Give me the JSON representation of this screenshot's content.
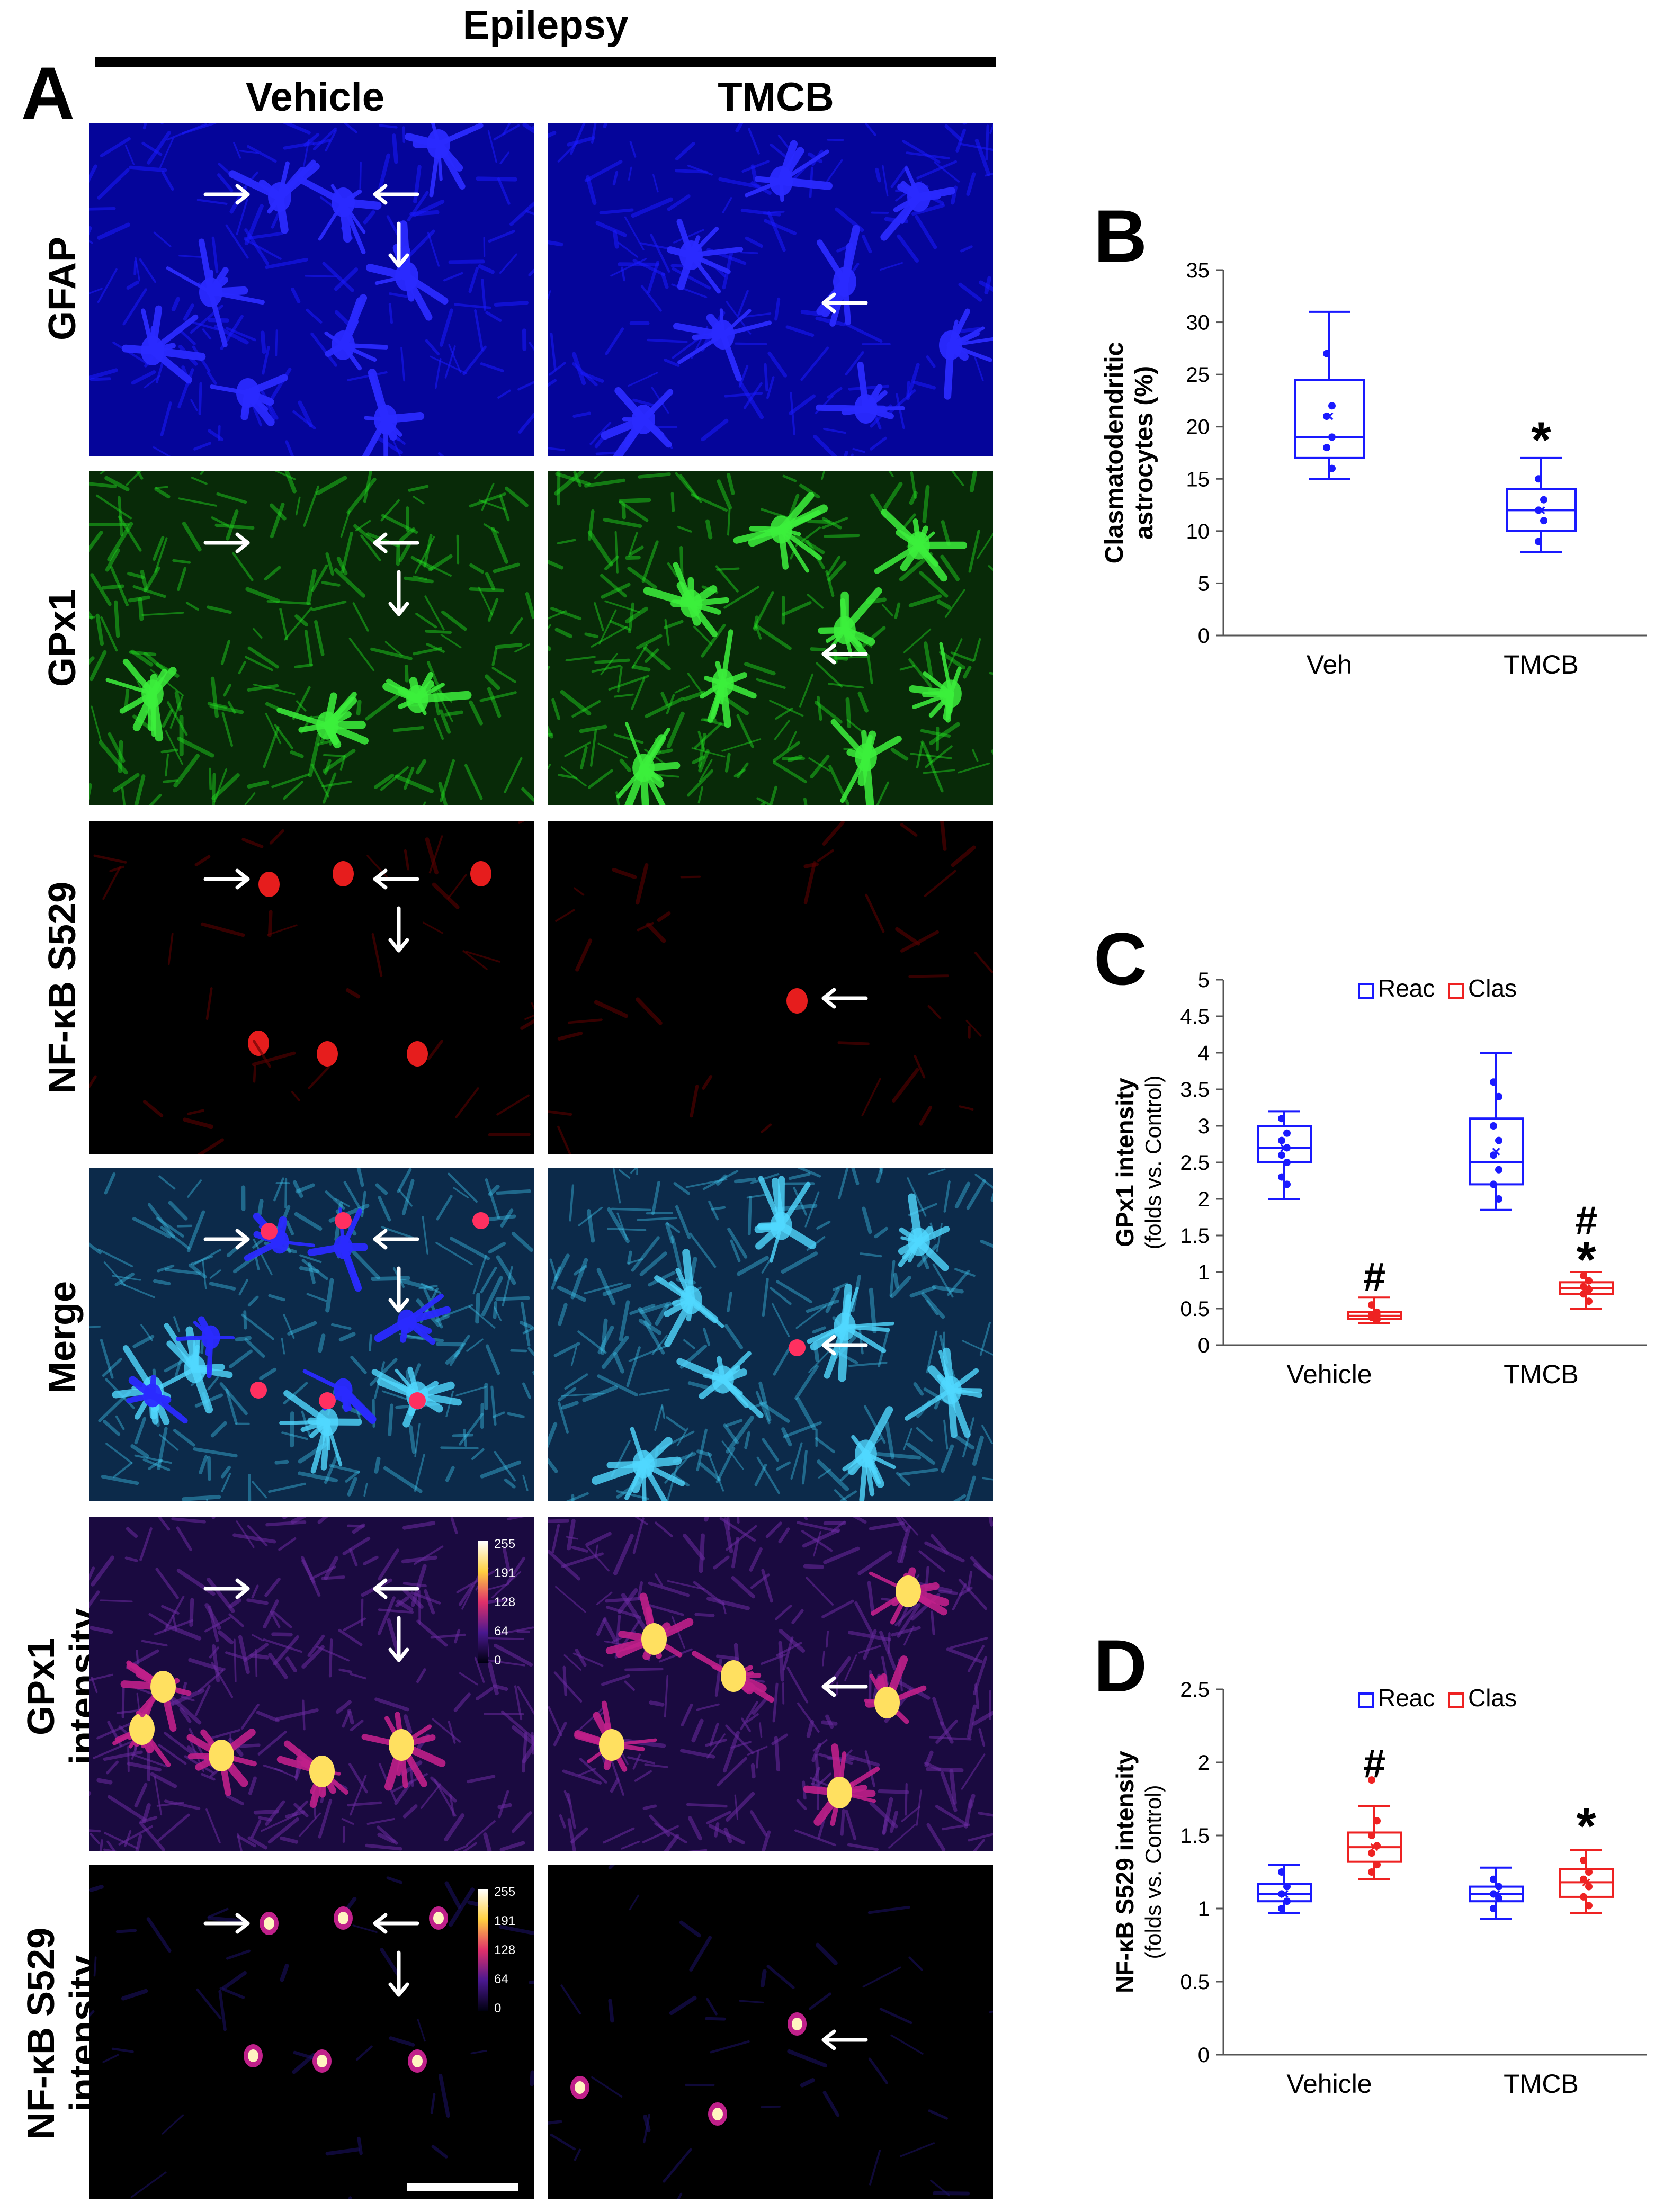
{
  "figure": {
    "panel_a": {
      "letter": "A",
      "group_title": "Epilepsy",
      "columns": [
        "Vehicle",
        "TMCB"
      ],
      "rows": [
        {
          "label": "GFAP",
          "stain": "blue"
        },
        {
          "label": "GPx1",
          "stain": "green"
        },
        {
          "label": "NF-κB S529",
          "stain": "red"
        },
        {
          "label": "Merge",
          "stain": "merge"
        },
        {
          "label": "GPx1\nintensity",
          "stain": "fire"
        },
        {
          "label": "NF-κB S529\nintensity",
          "stain": "fire-sparse"
        }
      ],
      "calibration_ticks": [
        "255",
        "191",
        "128",
        "64",
        "0"
      ],
      "colors": {
        "blue": "#1a1aff",
        "green": "#22dd22",
        "red": "#ff2020",
        "cyan": "#40c8f0",
        "fire_hot": "#ffe060",
        "fire_mid": "#c0208a",
        "fire_low": "#3a1480"
      }
    },
    "panel_b": {
      "letter": "B"
    },
    "panel_c": {
      "letter": "C"
    },
    "panel_d": {
      "letter": "D"
    }
  },
  "chart_data": [
    {
      "type": "box",
      "panel": "B",
      "ylabel_lines": [
        "Clasmatodendritic",
        "astrocytes (%)"
      ],
      "ylim": [
        0,
        35
      ],
      "yticks": [
        0,
        5,
        10,
        15,
        20,
        25,
        30,
        35
      ],
      "categories": [
        "Veh",
        "TMCB"
      ],
      "series": [
        {
          "color": "#1a1aff",
          "boxes": [
            {
              "min": 15,
              "q1": 17,
              "median": 19,
              "q3": 24.5,
              "max": 31,
              "mean": 21,
              "points": [
                27,
                22,
                21,
                19,
                18,
                16
              ]
            },
            {
              "min": 8,
              "q1": 10,
              "median": 12,
              "q3": 14,
              "max": 17,
              "mean": 12,
              "points": [
                15,
                13,
                12,
                11,
                9
              ]
            }
          ]
        }
      ],
      "annotations": [
        {
          "category": "TMCB",
          "text": "*",
          "y": 19.5
        }
      ]
    },
    {
      "type": "box",
      "panel": "C",
      "ylabel": "GPx1 intensity",
      "ylabel_sub": "(folds vs. Control)",
      "ylim": [
        0,
        5
      ],
      "yticks": [
        "0",
        "0.5",
        "1",
        "1.5",
        "2",
        "2.5",
        "3",
        "3.5",
        "4",
        "4.5",
        "5"
      ],
      "categories": [
        "Vehicle",
        "TMCB"
      ],
      "legend": [
        "Reac",
        "Clas"
      ],
      "series": [
        {
          "name": "Reac",
          "color": "#1a1aff",
          "boxes": [
            {
              "min": 2.0,
              "q1": 2.5,
              "median": 2.7,
              "q3": 3.0,
              "max": 3.2,
              "mean": 2.7,
              "points": [
                3.1,
                2.9,
                2.8,
                2.7,
                2.6,
                2.5,
                2.3,
                2.2
              ]
            },
            {
              "min": 1.85,
              "q1": 2.2,
              "median": 2.5,
              "q3": 3.1,
              "max": 4.0,
              "mean": 2.65,
              "points": [
                3.6,
                3.4,
                3.0,
                2.8,
                2.6,
                2.4,
                2.2,
                2.0
              ]
            }
          ]
        },
        {
          "name": "Clas",
          "color": "#ee2222",
          "boxes": [
            {
              "min": 0.3,
              "q1": 0.36,
              "median": 0.4,
              "q3": 0.45,
              "max": 0.65,
              "mean": 0.41,
              "points": [
                0.55,
                0.45,
                0.42,
                0.4,
                0.38,
                0.35
              ]
            },
            {
              "min": 0.5,
              "q1": 0.7,
              "median": 0.78,
              "q3": 0.86,
              "max": 1.0,
              "mean": 0.78,
              "points": [
                0.95,
                0.88,
                0.8,
                0.76,
                0.7,
                0.6
              ]
            }
          ]
        }
      ],
      "annotations": [
        {
          "category": "Vehicle",
          "series": "Clas",
          "text": "#",
          "y": 0.95
        },
        {
          "category": "TMCB",
          "series": "Clas",
          "text": "#",
          "y": 1.72
        },
        {
          "category": "TMCB",
          "series": "Clas",
          "text": "*",
          "y": 1.28
        }
      ]
    },
    {
      "type": "box",
      "panel": "D",
      "ylabel": "NF-κB S529 intensity",
      "ylabel_sub": "(folds vs. Control)",
      "ylim": [
        0,
        2.5
      ],
      "yticks": [
        "0",
        "0.5",
        "1",
        "1.5",
        "2",
        "2.5"
      ],
      "categories": [
        "Vehicle",
        "TMCB"
      ],
      "legend": [
        "Reac",
        "Clas"
      ],
      "series": [
        {
          "name": "Reac",
          "color": "#1a1aff",
          "boxes": [
            {
              "min": 0.97,
              "q1": 1.05,
              "median": 1.1,
              "q3": 1.17,
              "max": 1.3,
              "mean": 1.1,
              "points": [
                1.25,
                1.15,
                1.1,
                1.05,
                1.0
              ]
            },
            {
              "min": 0.93,
              "q1": 1.05,
              "median": 1.1,
              "q3": 1.15,
              "max": 1.28,
              "mean": 1.1,
              "points": [
                1.2,
                1.15,
                1.1,
                1.07,
                1.0
              ]
            }
          ]
        },
        {
          "name": "Clas",
          "color": "#ee2222",
          "boxes": [
            {
              "min": 1.2,
              "q1": 1.32,
              "median": 1.42,
              "q3": 1.52,
              "max": 1.7,
              "mean": 1.42,
              "points": [
                1.88,
                1.6,
                1.5,
                1.43,
                1.38,
                1.3,
                1.25
              ]
            },
            {
              "min": 0.97,
              "q1": 1.08,
              "median": 1.18,
              "q3": 1.27,
              "max": 1.4,
              "mean": 1.18,
              "points": [
                1.33,
                1.25,
                1.2,
                1.15,
                1.08,
                1.02
              ]
            }
          ]
        }
      ],
      "annotations": [
        {
          "category": "Vehicle",
          "series": "Clas",
          "text": "#",
          "y": 2.0
        },
        {
          "category": "TMCB",
          "series": "Clas",
          "text": "*",
          "y": 1.62
        }
      ]
    }
  ]
}
